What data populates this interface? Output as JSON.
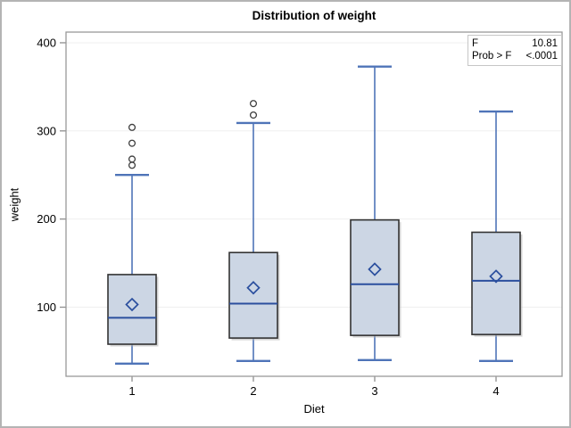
{
  "figure": {
    "background": "#ffffff",
    "border_color": "#b4b4b4"
  },
  "inset": {
    "rows": [
      {
        "label": "F",
        "value": "10.81"
      },
      {
        "label": "Prob > F",
        "value": "<.0001"
      }
    ]
  },
  "chart_data": {
    "type": "boxplot",
    "title": "Distribution of weight",
    "xlabel": "Diet",
    "ylabel": "weight",
    "categories": [
      "1",
      "2",
      "3",
      "4"
    ],
    "y_ticks": [
      100,
      200,
      300,
      400
    ],
    "ylim": [
      21.6,
      412.1
    ],
    "grid": true,
    "legend_position": "inset-top-right",
    "series": [
      {
        "category": "1",
        "min": 36,
        "q1": 58,
        "median": 88,
        "q3": 137,
        "max": 250,
        "mean": 103,
        "outliers": [
          261,
          268,
          286,
          304
        ]
      },
      {
        "category": "2",
        "min": 39,
        "q1": 65,
        "median": 104,
        "q3": 162,
        "max": 309,
        "mean": 122,
        "outliers": [
          318,
          331
        ]
      },
      {
        "category": "3",
        "min": 40,
        "q1": 68,
        "median": 126,
        "q3": 199,
        "max": 373,
        "mean": 143,
        "outliers": []
      },
      {
        "category": "4",
        "min": 39,
        "q1": 69,
        "median": 130,
        "q3": 185,
        "max": 322,
        "mean": 135,
        "outliers": []
      }
    ],
    "colors": {
      "box_fill": "#ccd6e4",
      "box_border": "#333333",
      "box_shadow": "#b0b0b0",
      "median": "#2b4f9e",
      "whisker": "#4f74b8",
      "mean_marker": "#2b4f9e",
      "outlier": "#3f3f3f",
      "grid": "#efefef",
      "axis": "#999999",
      "tick": "#8f8f8f",
      "text": "#000000"
    }
  }
}
